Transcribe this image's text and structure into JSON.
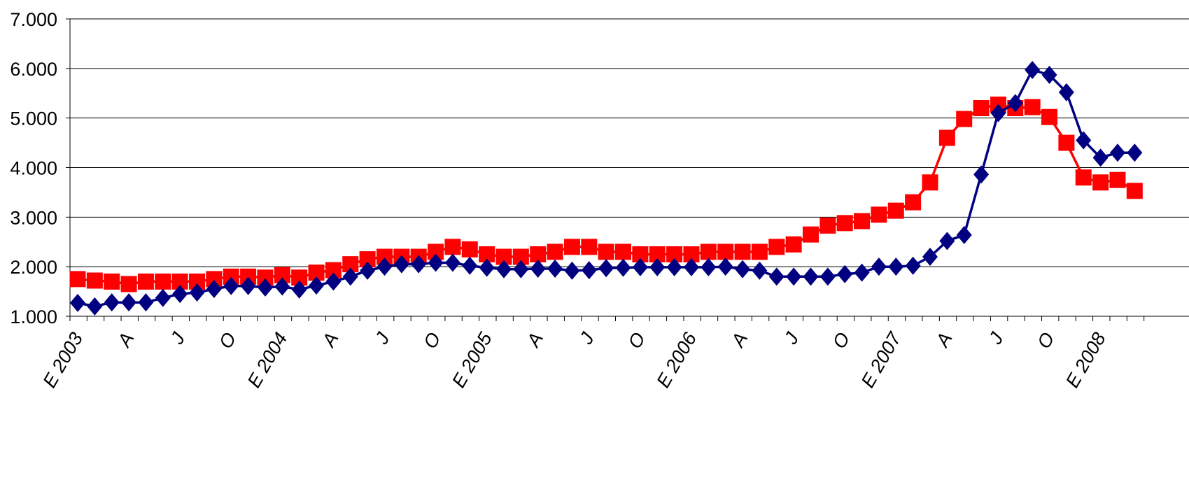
{
  "chart_data": {
    "type": "line",
    "title": "",
    "xlabel": "",
    "ylabel": "",
    "ylim": [
      1000,
      7000
    ],
    "yticks": [
      1000,
      2000,
      3000,
      4000,
      5000,
      6000,
      7000
    ],
    "ytick_labels": [
      "1.000",
      "2.000",
      "3.000",
      "4.000",
      "5.000",
      "6.000",
      "7.000"
    ],
    "grid": true,
    "legend": "none",
    "x_tick_labels": [
      {
        "index": 0,
        "label": "E 2003"
      },
      {
        "index": 3,
        "label": "A"
      },
      {
        "index": 6,
        "label": "J"
      },
      {
        "index": 9,
        "label": "O"
      },
      {
        "index": 12,
        "label": "E 2004"
      },
      {
        "index": 15,
        "label": "A"
      },
      {
        "index": 18,
        "label": "J"
      },
      {
        "index": 21,
        "label": "O"
      },
      {
        "index": 24,
        "label": "E 2005"
      },
      {
        "index": 27,
        "label": "A"
      },
      {
        "index": 30,
        "label": "J"
      },
      {
        "index": 33,
        "label": "O"
      },
      {
        "index": 36,
        "label": "E 2006"
      },
      {
        "index": 39,
        "label": "A"
      },
      {
        "index": 42,
        "label": "J"
      },
      {
        "index": 45,
        "label": "O"
      },
      {
        "index": 48,
        "label": "E 2007"
      },
      {
        "index": 51,
        "label": "A"
      },
      {
        "index": 54,
        "label": "J"
      },
      {
        "index": 57,
        "label": "O"
      },
      {
        "index": 60,
        "label": "E 2008"
      }
    ],
    "n_points": 63,
    "series": [
      {
        "marker": "square",
        "color": "#ff0000",
        "values": [
          1750,
          1720,
          1700,
          1650,
          1700,
          1700,
          1700,
          1700,
          1750,
          1800,
          1800,
          1780,
          1830,
          1780,
          1880,
          1930,
          2050,
          2150,
          2200,
          2200,
          2200,
          2300,
          2400,
          2350,
          2250,
          2200,
          2200,
          2250,
          2300,
          2400,
          2400,
          2300,
          2300,
          2250,
          2250,
          2250,
          2250,
          2300,
          2300,
          2300,
          2300,
          2400,
          2450,
          2650,
          2830,
          2880,
          2920,
          3050,
          3130,
          3300,
          3700,
          4600,
          4980,
          5200,
          5270,
          5200,
          5220,
          5020,
          4500,
          3800,
          3700,
          3750,
          3530
        ]
      },
      {
        "marker": "diamond",
        "color": "#000080",
        "values": [
          1270,
          1200,
          1280,
          1280,
          1280,
          1370,
          1450,
          1480,
          1550,
          1610,
          1610,
          1580,
          1600,
          1540,
          1620,
          1700,
          1800,
          1920,
          2000,
          2050,
          2050,
          2080,
          2080,
          2020,
          1980,
          1950,
          1950,
          1960,
          1960,
          1920,
          1930,
          1970,
          1980,
          1990,
          1990,
          1990,
          1990,
          1990,
          2000,
          1950,
          1920,
          1800,
          1800,
          1800,
          1800,
          1850,
          1880,
          2000,
          2000,
          2020,
          2200,
          2520,
          2640,
          3860,
          5100,
          5300,
          5970,
          5870,
          5520,
          4550,
          4200,
          4300,
          4300
        ]
      }
    ]
  }
}
